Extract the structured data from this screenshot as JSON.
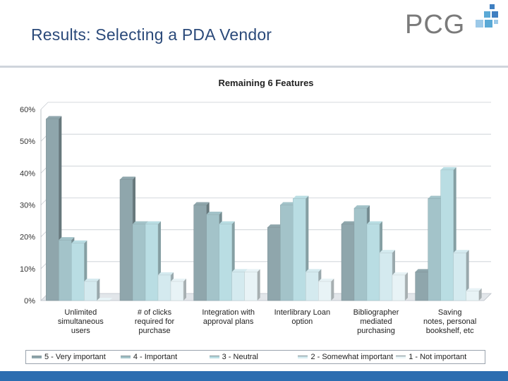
{
  "header": {
    "title": "Results: Selecting a PDA Vendor"
  },
  "logo": {
    "text": "PCG"
  },
  "colors": {
    "footer": "#2c6db0",
    "logo_blue": "#3f7fc1",
    "logo_lightblue": "#9cc9e8",
    "logo_teal": "#5aa9d6"
  },
  "chart_data": {
    "type": "bar",
    "title": "Remaining 6 Features",
    "xlabel": "",
    "ylabel": "",
    "ylim": [
      0,
      60
    ],
    "ytick_labels": [
      "0%",
      "10%",
      "20%",
      "30%",
      "40%",
      "50%",
      "60%"
    ],
    "categories": [
      "Unlimited simultaneous users",
      "# of clicks required for purchase",
      "Integration with approval plans",
      "Interlibrary Loan option",
      "Bibliographer mediated purchasing",
      "Saving notes, personal bookshelf, etc"
    ],
    "category_lines": [
      [
        "Unlimited",
        "simultaneous",
        "users"
      ],
      [
        "# of clicks",
        "required for",
        "purchase"
      ],
      [
        "Integration with",
        "approval plans"
      ],
      [
        "Interlibrary Loan",
        "option"
      ],
      [
        "Bibliographer",
        "mediated",
        "purchasing"
      ],
      [
        "Saving",
        "notes, personal",
        "bookshelf, etc"
      ]
    ],
    "series": [
      {
        "name": "5 - Very important",
        "color": "#8fa6ac",
        "values": [
          57,
          38,
          30,
          23,
          24,
          9
        ]
      },
      {
        "name": "4 - Important",
        "color": "#a3c3c9",
        "values": [
          19,
          24,
          27,
          30,
          29,
          32
        ]
      },
      {
        "name": "3 - Neutral",
        "color": "#b9dde3",
        "values": [
          18,
          24,
          24,
          32,
          24,
          41
        ]
      },
      {
        "name": "2 - Somewhat important",
        "color": "#d4eaef",
        "values": [
          6,
          8,
          9,
          9,
          15,
          15
        ]
      },
      {
        "name": "1 - Not important",
        "color": "#e8f3f6",
        "values": [
          0,
          6,
          9,
          6,
          8,
          3
        ]
      }
    ],
    "grid": true,
    "legend_position": "bottom"
  }
}
